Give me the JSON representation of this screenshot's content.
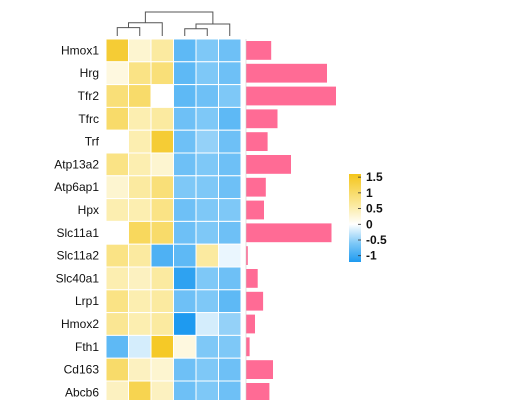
{
  "chart_data": {
    "type": "heatmap",
    "title": "",
    "rows": [
      "Hmox1",
      "Hrg",
      "Tfr2",
      "Tfrc",
      "Trf",
      "Atp13a2",
      "Atp6ap1",
      "Hpx",
      "Slc11a1",
      "Slc11a2",
      "Slc40a1",
      "Lrp1",
      "Hmox2",
      "Fth1",
      "Cd163",
      "Abcb6"
    ],
    "columns_count": 6,
    "values": [
      [
        1.4,
        0.3,
        0.6,
        -0.8,
        -0.6,
        -0.7
      ],
      [
        0.2,
        0.8,
        0.9,
        -0.8,
        -0.6,
        -0.7
      ],
      [
        0.9,
        1.0,
        0.0,
        -0.8,
        -0.7,
        -0.6
      ],
      [
        1.0,
        0.5,
        0.6,
        -0.7,
        -0.6,
        -0.8
      ],
      [
        0.0,
        0.5,
        1.4,
        -0.7,
        -0.5,
        -0.7
      ],
      [
        0.8,
        0.5,
        0.3,
        -0.7,
        -0.6,
        -0.7
      ],
      [
        0.3,
        0.6,
        0.9,
        -0.6,
        -0.6,
        -0.7
      ],
      [
        0.5,
        0.5,
        0.8,
        -0.7,
        -0.6,
        -0.6
      ],
      [
        0.0,
        1.1,
        1.0,
        -0.7,
        -0.6,
        -0.7
      ],
      [
        0.8,
        0.6,
        -0.9,
        -0.8,
        0.6,
        -0.1
      ],
      [
        0.5,
        0.4,
        0.6,
        -1.1,
        -0.6,
        -0.7
      ],
      [
        0.8,
        0.5,
        0.6,
        -0.7,
        -0.6,
        -0.8
      ],
      [
        0.7,
        0.5,
        0.6,
        -1.2,
        -0.2,
        -0.5
      ],
      [
        -0.8,
        -0.2,
        1.5,
        0.2,
        -0.6,
        -0.6
      ],
      [
        1.0,
        0.4,
        0.3,
        -0.7,
        -0.6,
        -0.7
      ],
      [
        0.4,
        1.2,
        0.4,
        -0.7,
        -0.6,
        -0.7
      ]
    ],
    "bar_values": [
      0.28,
      0.9,
      1.0,
      0.35,
      0.24,
      0.5,
      0.22,
      0.2,
      0.95,
      0.02,
      0.13,
      0.19,
      0.1,
      0.04,
      0.3,
      0.26
    ],
    "bar_color": "#ff6b95",
    "color_scale": {
      "min": -1.2,
      "max": 1.6,
      "stops": [
        {
          "value": -1.2,
          "color": "#1e9af0"
        },
        {
          "value": -0.6,
          "color": "#7ec8f7"
        },
        {
          "value": 0.0,
          "color": "#ffffff"
        },
        {
          "value": 0.6,
          "color": "#fbeaa0"
        },
        {
          "value": 1.6,
          "color": "#f4c51a"
        }
      ]
    },
    "legend": {
      "position": "right",
      "ticks": [
        {
          "value": 1.5,
          "label": "1.5"
        },
        {
          "value": 1,
          "label": "1"
        },
        {
          "value": 0.5,
          "label": "0.5"
        },
        {
          "value": 0,
          "label": "0"
        },
        {
          "value": -0.5,
          "label": "-0.5"
        },
        {
          "value": -1,
          "label": "-1"
        }
      ]
    },
    "column_dendrogram": [
      {
        "left": 0,
        "right": 1,
        "height": 0.35
      },
      {
        "left": "m0",
        "right": 2,
        "height": 0.55
      },
      {
        "left": 3,
        "right": 4,
        "height": 0.3
      },
      {
        "left": "m2",
        "right": 5,
        "height": 0.5
      },
      {
        "left": "m1",
        "right": "m3",
        "height": 1.0
      }
    ]
  }
}
